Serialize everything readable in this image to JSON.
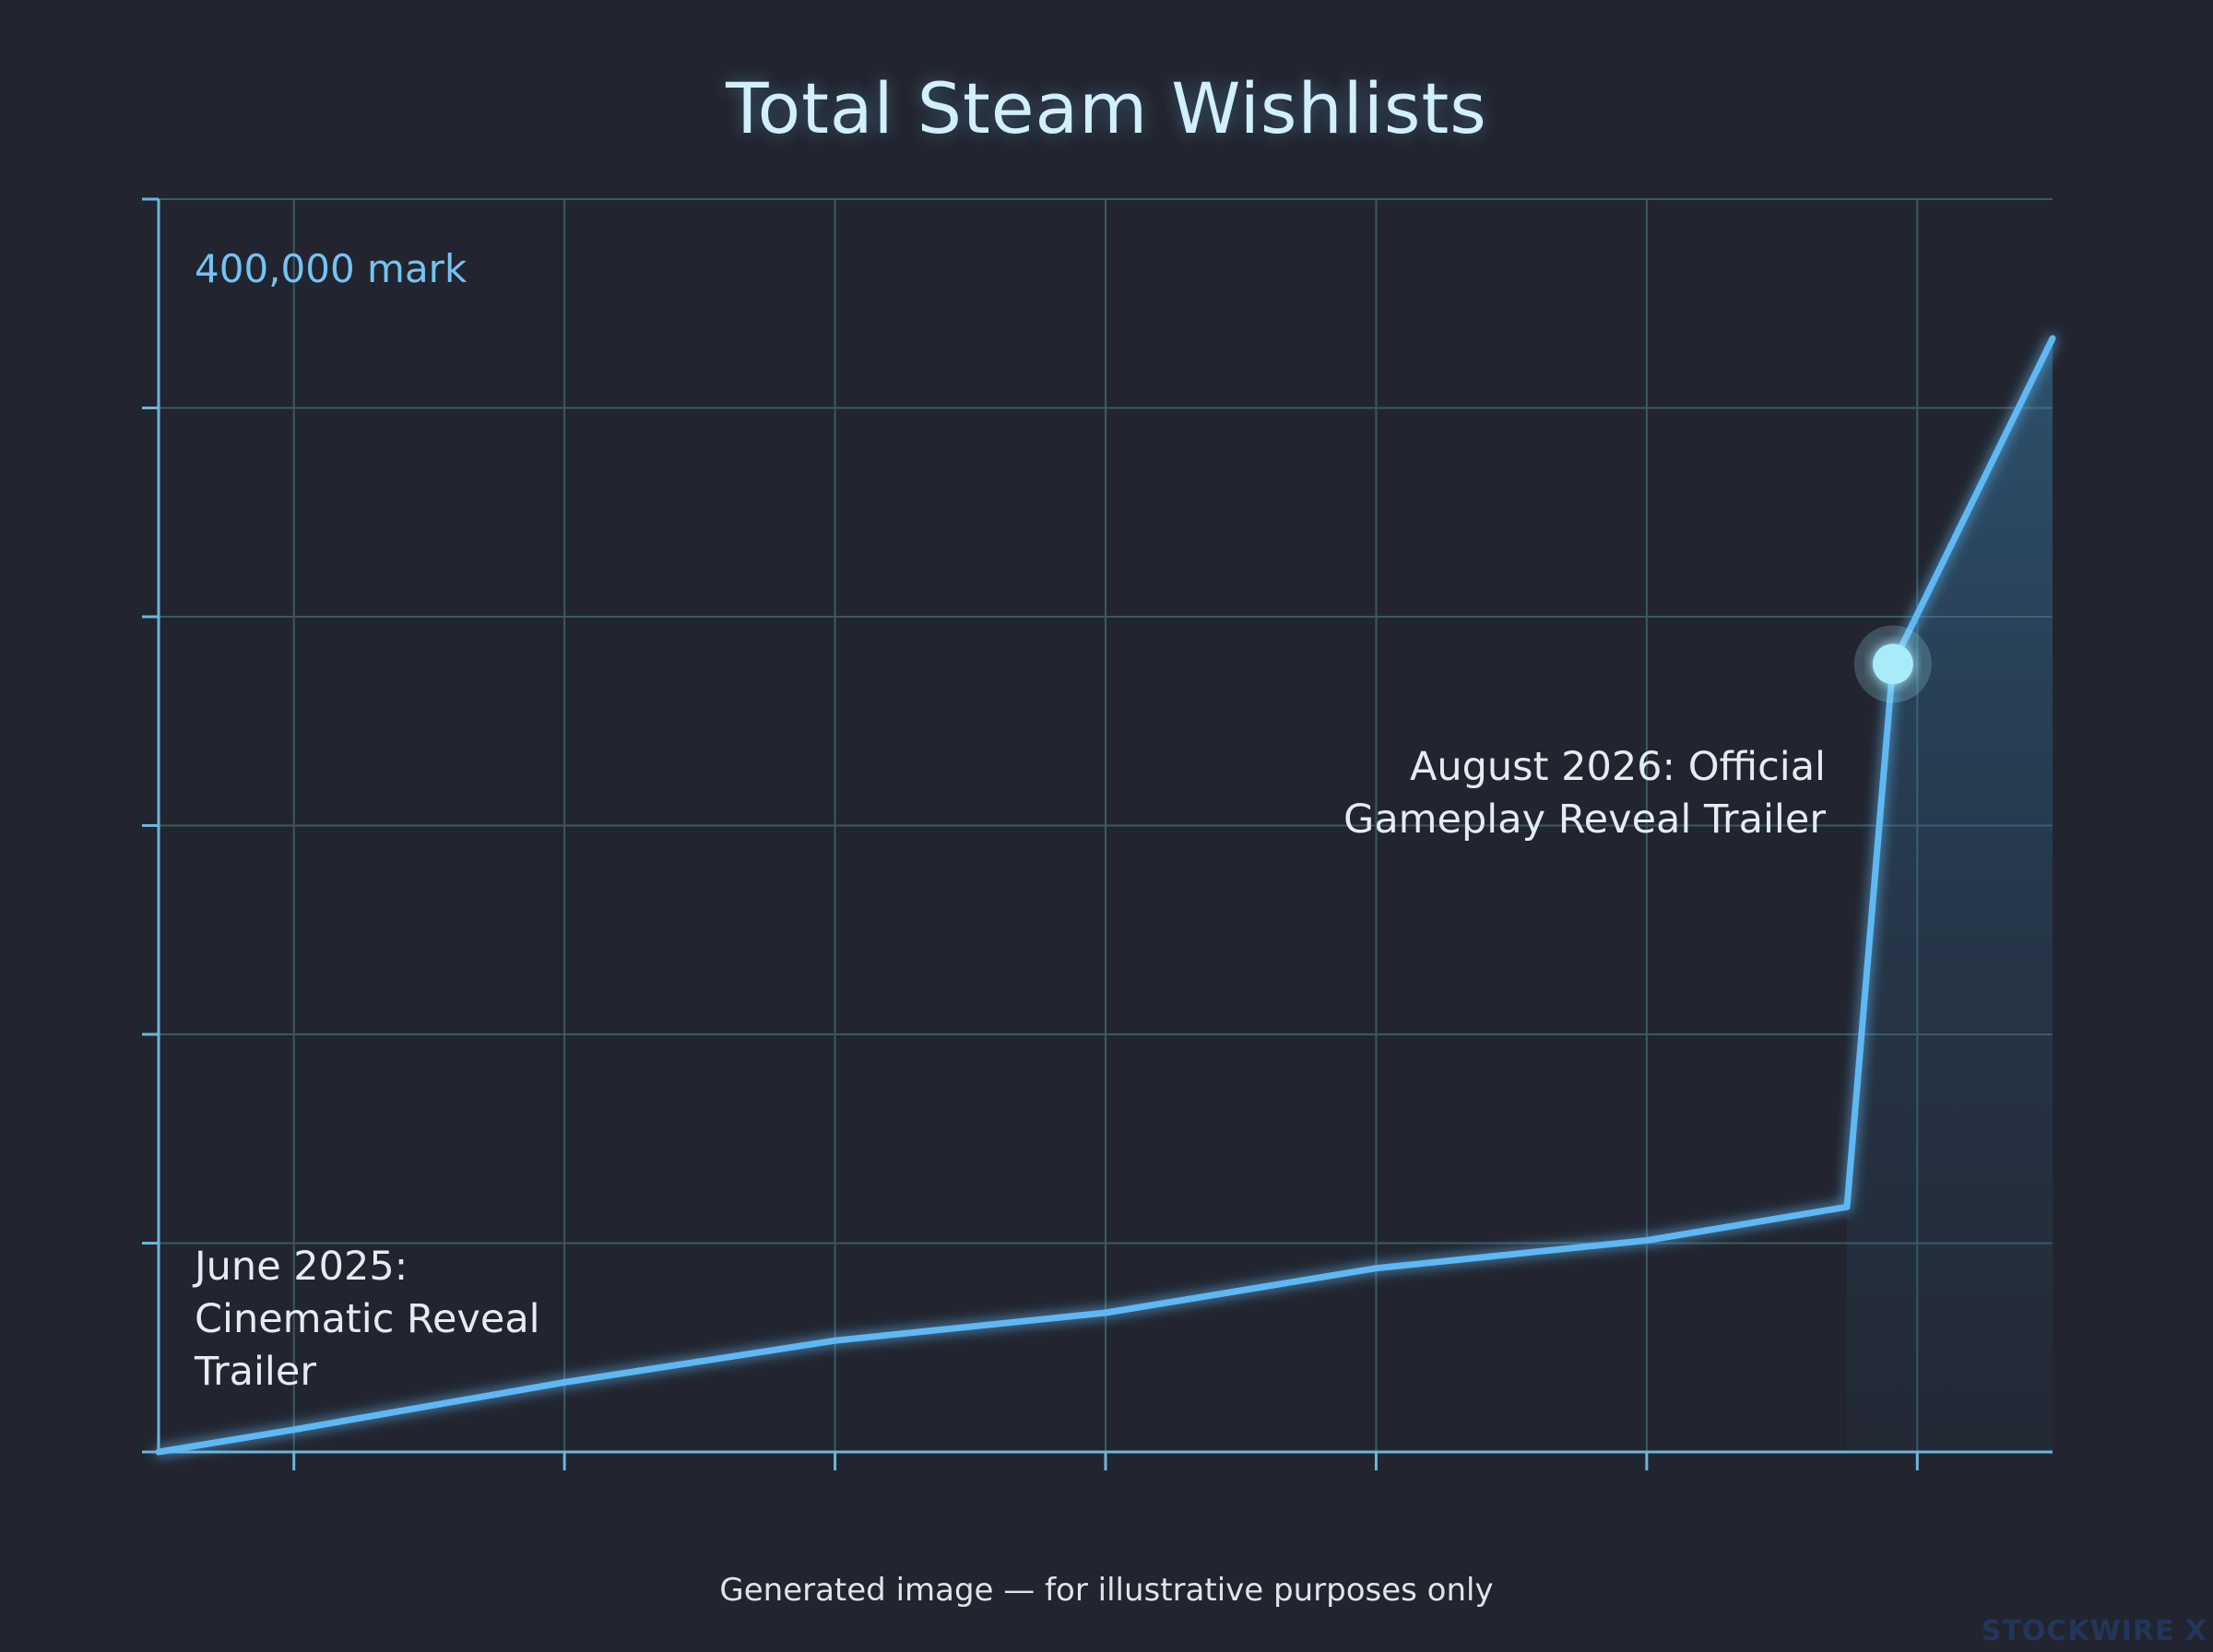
{
  "chart_data": {
    "type": "line",
    "title": "Total Steam Wishlists",
    "xlabel": "",
    "ylabel": "",
    "ylim": [
      0,
      450000
    ],
    "x_ticks": 7,
    "y_ticks": 6,
    "grid": true,
    "series": [
      {
        "points": [
          [
            0.0,
            0
          ],
          [
            0.5,
            8000
          ],
          [
            1.5,
            25000
          ],
          [
            2.5,
            40000
          ],
          [
            3.5,
            50000
          ],
          [
            4.5,
            66000
          ],
          [
            5.5,
            76000
          ],
          [
            6.24,
            88000
          ],
          [
            6.41,
            283000
          ],
          [
            7.0,
            400000
          ]
        ],
        "color": "#5fb8f3"
      }
    ],
    "x_domain": [
      0,
      7
    ],
    "reference_line": {
      "value": 400000,
      "label": "400,000 mark",
      "color": "#5fb8f3"
    },
    "annotations": [
      {
        "text_lines": [
          "June 2025:",
          "Cinematic Reveal",
          "Trailer"
        ],
        "x": 0,
        "y": 0
      },
      {
        "text_lines": [
          "August 2026: Official",
          "Gameplay Reveal Trailer"
        ],
        "x": 6.41,
        "y": 283000
      }
    ]
  },
  "disclaimer": "Generated image — for illustrative purposes only",
  "watermark": "STOCKWIRE X",
  "colors": {
    "background": "#22252f",
    "grid": "#3d5863",
    "axis": "#6bb6da",
    "line": "#5fb8f3",
    "marker": "#a8ecfb"
  }
}
